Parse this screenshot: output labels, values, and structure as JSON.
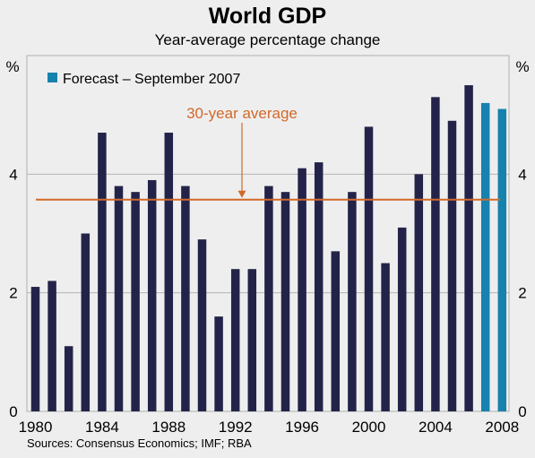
{
  "chart_data": {
    "type": "bar",
    "title": "World GDP",
    "subtitle": "Year-average percentage change",
    "unit_left": "%",
    "unit_right": "%",
    "ylim": [
      0,
      6
    ],
    "yticks": [
      0,
      2,
      4
    ],
    "xtick_labels": [
      "1980",
      "1984",
      "1988",
      "1992",
      "1996",
      "2000",
      "2004",
      "2008"
    ],
    "categories": [
      1980,
      1981,
      1982,
      1983,
      1984,
      1985,
      1986,
      1987,
      1988,
      1989,
      1990,
      1991,
      1992,
      1993,
      1994,
      1995,
      1996,
      1997,
      1998,
      1999,
      2000,
      2001,
      2002,
      2003,
      2004,
      2005,
      2006,
      2007,
      2008
    ],
    "values": [
      2.1,
      2.2,
      1.1,
      3.0,
      4.7,
      3.8,
      3.7,
      3.9,
      4.7,
      3.8,
      2.9,
      1.6,
      2.4,
      2.4,
      3.8,
      3.7,
      4.1,
      4.2,
      2.7,
      3.7,
      4.8,
      2.5,
      3.1,
      4.0,
      5.3,
      4.9,
      5.5,
      5.2,
      5.1
    ],
    "forecast_from": 2007,
    "legend": "Forecast – September 2007",
    "average_line": {
      "label": "30-year average",
      "value": 3.57
    },
    "colors": {
      "actual": "#23234a",
      "forecast": "#1682ad",
      "average": "#d2692a",
      "grid": "#b4b4b4"
    },
    "grid": true
  },
  "source": "Sources: Consensus Economics; IMF; RBA"
}
